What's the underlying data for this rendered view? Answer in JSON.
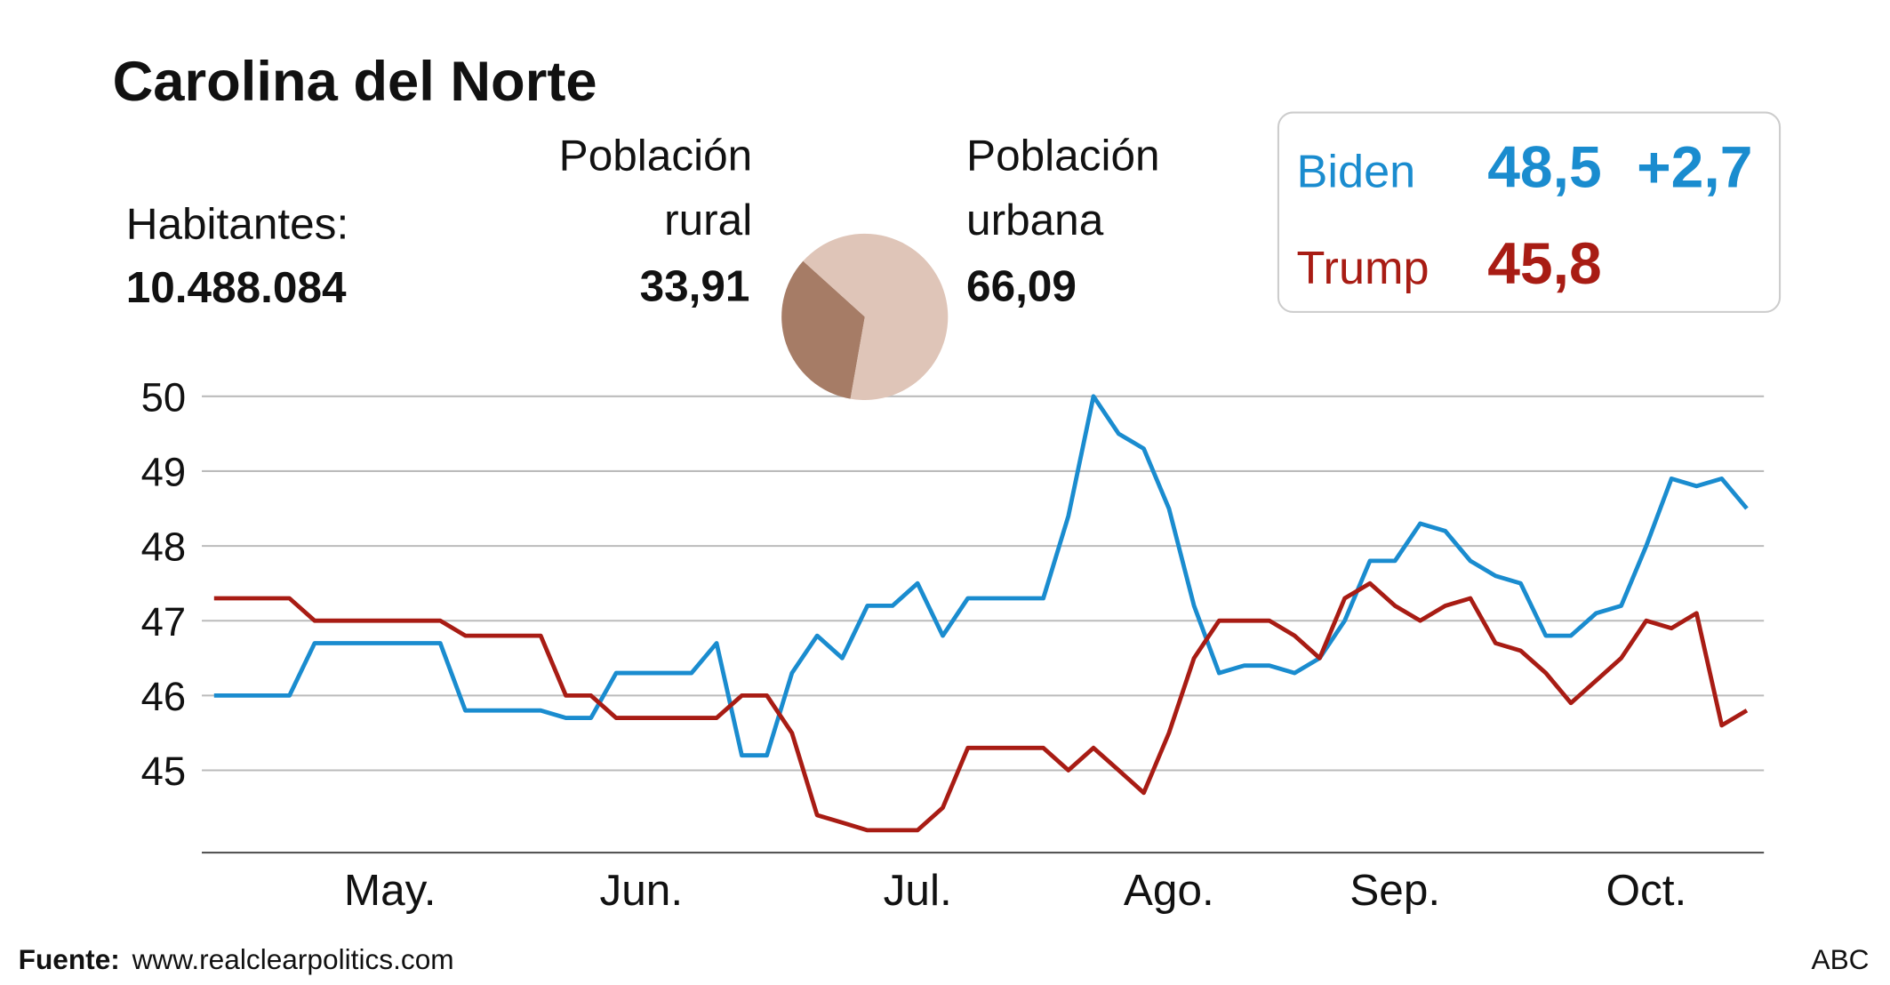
{
  "header": {
    "title": "Carolina del Norte",
    "population_label": "Habitantes:",
    "population": "10.488.084"
  },
  "summary": {
    "biden_value": "48,5",
    "biden_lead": "+2,7",
    "trump_value": "45,8"
  },
  "chart_data": [
    {
      "type": "line",
      "categories": [
        null,
        null,
        null,
        null,
        null,
        null,
        null,
        "May.",
        null,
        null,
        null,
        null,
        null,
        null,
        null,
        null,
        null,
        "Jun.",
        null,
        null,
        null,
        null,
        null,
        null,
        null,
        null,
        null,
        null,
        "Jul.",
        null,
        null,
        null,
        null,
        null,
        null,
        null,
        null,
        null,
        "Ago.",
        null,
        null,
        null,
        null,
        null,
        null,
        null,
        null,
        "Sep.",
        null,
        null,
        null,
        null,
        null,
        null,
        null,
        null,
        null,
        "Oct.",
        null,
        null,
        null,
        null
      ],
      "series": [
        {
          "name": "Biden",
          "color": "#1a8ccf",
          "values": [
            46.0,
            46.0,
            46.0,
            46.0,
            46.7,
            46.7,
            46.7,
            46.7,
            46.7,
            46.7,
            45.8,
            45.8,
            45.8,
            45.8,
            45.7,
            45.7,
            46.3,
            46.3,
            46.3,
            46.3,
            46.7,
            45.2,
            45.2,
            46.3,
            46.8,
            46.5,
            47.2,
            47.2,
            47.5,
            46.8,
            47.3,
            47.3,
            47.3,
            47.3,
            48.4,
            50.0,
            49.5,
            49.3,
            48.5,
            47.2,
            46.3,
            46.4,
            46.4,
            46.3,
            46.5,
            47.0,
            47.8,
            47.8,
            48.3,
            48.2,
            47.8,
            47.6,
            47.5,
            46.8,
            46.8,
            47.1,
            47.2,
            48.0,
            48.9,
            48.8,
            48.9,
            48.5
          ]
        },
        {
          "name": "Trump",
          "color": "#a81c14",
          "values": [
            47.3,
            47.3,
            47.3,
            47.3,
            47.0,
            47.0,
            47.0,
            47.0,
            47.0,
            47.0,
            46.8,
            46.8,
            46.8,
            46.8,
            46.0,
            46.0,
            45.7,
            45.7,
            45.7,
            45.7,
            45.7,
            46.0,
            46.0,
            45.5,
            44.4,
            44.3,
            44.2,
            44.2,
            44.2,
            44.5,
            45.3,
            45.3,
            45.3,
            45.3,
            45.0,
            45.3,
            45.0,
            44.7,
            45.5,
            46.5,
            47.0,
            47.0,
            47.0,
            46.8,
            46.5,
            47.3,
            47.5,
            47.2,
            47.0,
            47.2,
            47.3,
            46.7,
            46.6,
            46.3,
            45.9,
            46.2,
            46.5,
            47.0,
            46.9,
            47.1,
            45.6,
            45.8
          ]
        }
      ],
      "ylim": [
        43.9,
        50
      ],
      "yticks": [
        45,
        46,
        47,
        48,
        49,
        50
      ],
      "grid": true
    },
    {
      "type": "pie",
      "categories": [
        "Población rural",
        "Población urbana"
      ],
      "values": [
        33.91,
        66.09
      ],
      "value_labels": [
        "33,91",
        "66,09"
      ],
      "colors": [
        "#a67c66",
        "#dfc5b8"
      ]
    }
  ],
  "footer": {
    "source_label": "Fuente:",
    "source": "www.realclearpolitics.com",
    "credit": "ABC"
  }
}
